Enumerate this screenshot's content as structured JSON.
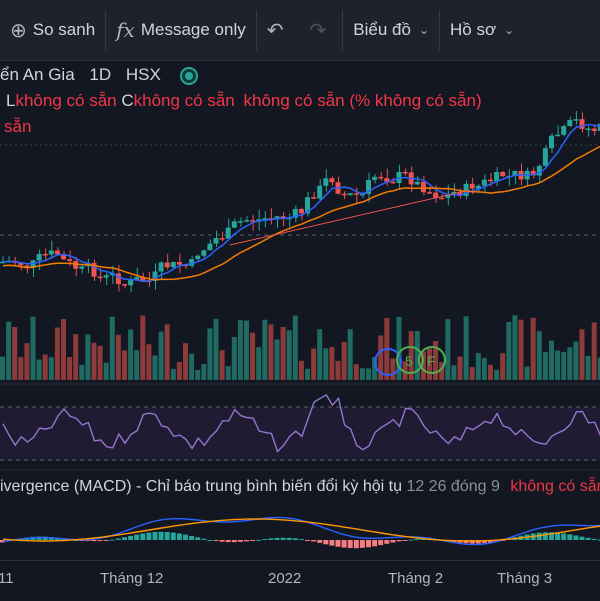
{
  "toolbar": {
    "compare_label": "So sanh",
    "message_label": "Message only",
    "chart_label": "Biểu đồ",
    "profile_label": "Hồ sơ"
  },
  "symbol": {
    "name": "ển An Gia",
    "interval": "1D",
    "exchange": "HSX"
  },
  "ohlc": {
    "l_label": "L",
    "l_value": "không có sẵn",
    "c_label": "C",
    "c_value": "không có sẵn",
    "change_abs": "không có sẵn",
    "change_pct": "(% không có sẵn)",
    "line2": "sẵn"
  },
  "macd": {
    "title": "ivergence (MACD) - Chỉ báo trung bình biến đổi kỳ hội tụ",
    "params": "12 26 đóng 9",
    "value": "không có sẵn"
  },
  "events": [
    "5",
    "F"
  ],
  "xaxis": [
    "11",
    "Tháng 12",
    "2022",
    "Tháng 2",
    "Tháng 3"
  ],
  "colors": {
    "up": "#26a69a",
    "down": "#ef5350",
    "ma_fast": "#2962ff",
    "ma_slow": "#f57c00",
    "rsi": "#7e57c2"
  }
}
